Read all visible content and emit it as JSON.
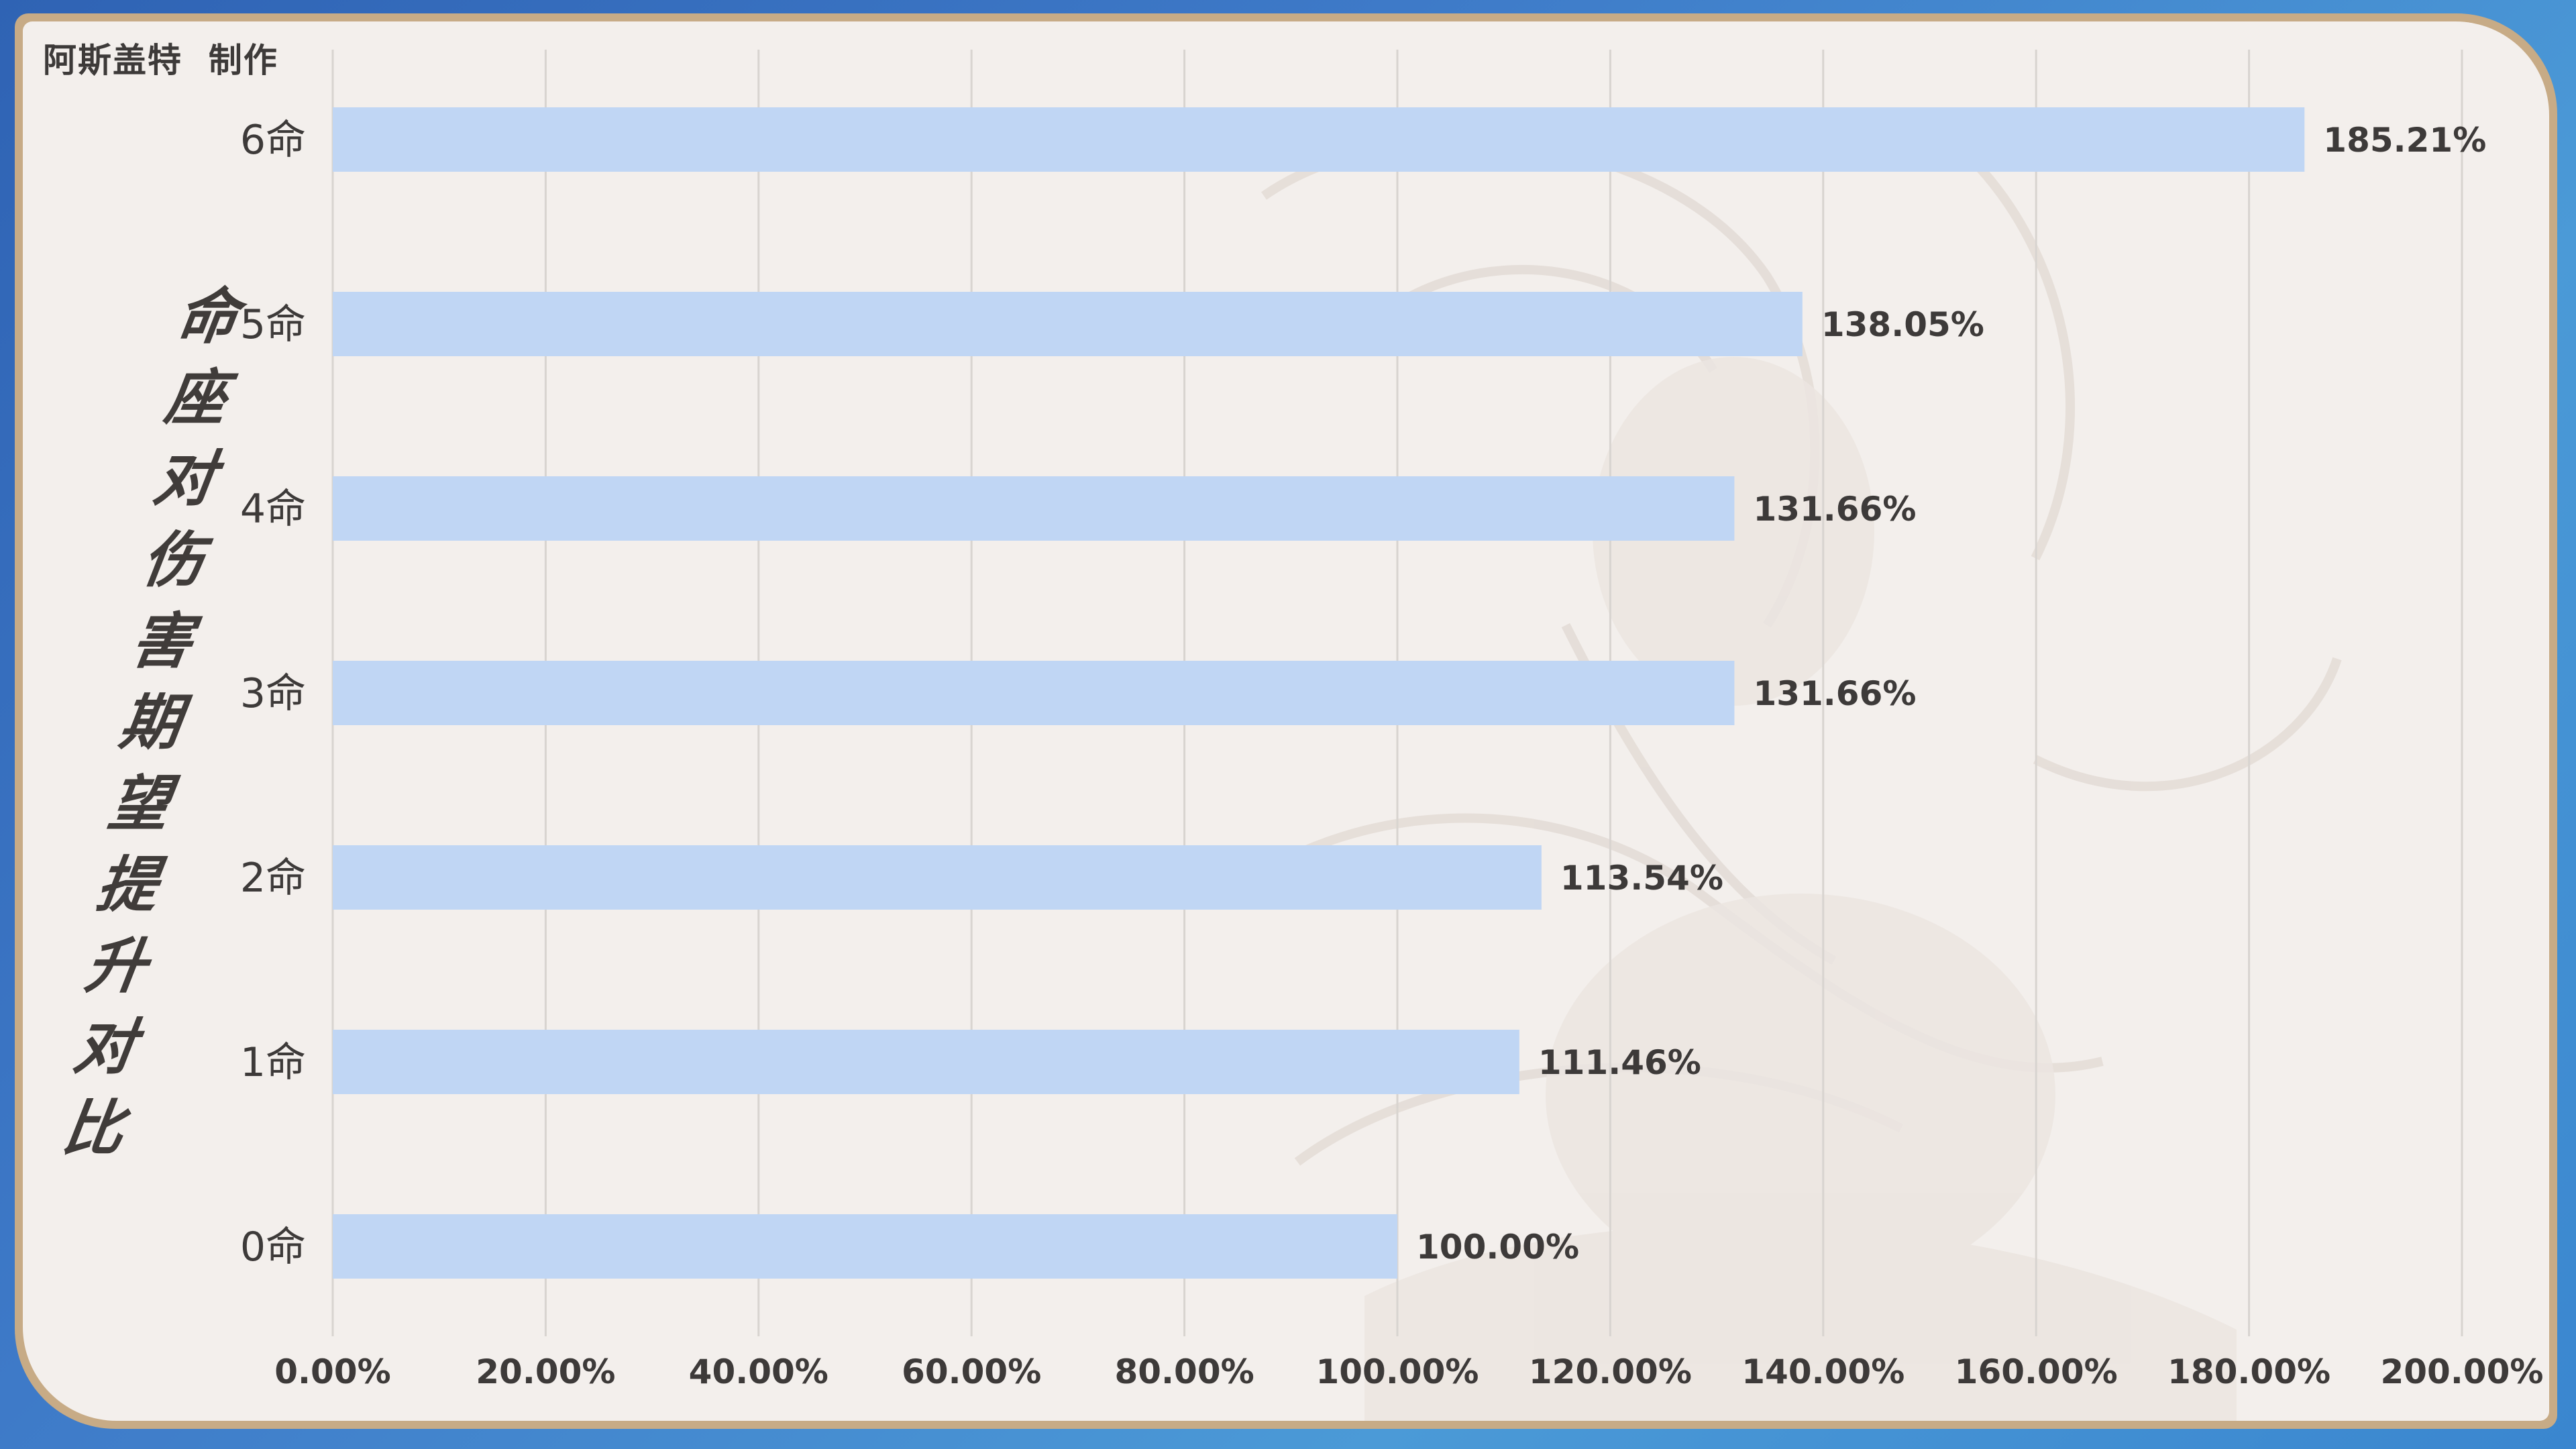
{
  "credit": "阿斯盖特  制作",
  "colors": {
    "bar": "#c0d6f4",
    "text": "#3d3a39",
    "grid": "#d8d4d0",
    "frame": "#c7ab86",
    "card": "#f3efec"
  },
  "chart_data": {
    "type": "bar",
    "orientation": "horizontal",
    "title": "命座对伤害期望提升对比",
    "categories": [
      "6命",
      "5命",
      "4命",
      "3命",
      "2命",
      "1命",
      "0命"
    ],
    "values": [
      185.21,
      138.05,
      131.66,
      131.66,
      113.54,
      111.46,
      100.0
    ],
    "value_labels": [
      "185.21%",
      "138.05%",
      "131.66%",
      "131.66%",
      "113.54%",
      "111.46%",
      "100.00%"
    ],
    "x_ticks": [
      0,
      20,
      40,
      60,
      80,
      100,
      120,
      140,
      160,
      180,
      200
    ],
    "x_tick_labels": [
      "0.00%",
      "20.00%",
      "40.00%",
      "60.00%",
      "80.00%",
      "100.00%",
      "120.00%",
      "140.00%",
      "160.00%",
      "180.00%",
      "200.00%"
    ],
    "xlim": [
      0,
      200
    ],
    "grid": true,
    "legend": "none"
  }
}
